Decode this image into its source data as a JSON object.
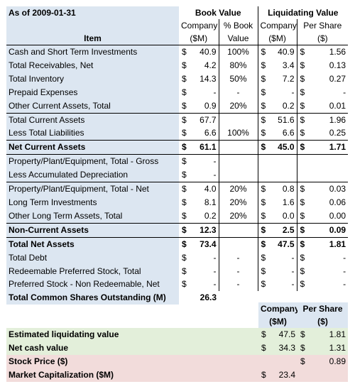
{
  "header": {
    "as_of": "As of 2009-01-31",
    "book_value": "Book Value",
    "liquidating_value": "Liquidating Value",
    "company": "Company",
    "pct_book": "% Book",
    "company2": "Company",
    "per_share": "Per Share",
    "item": "Item",
    "sm": "($M)",
    "value": "Value",
    "sm2": "($M)",
    "dollar": "($)"
  },
  "rows": [
    {
      "label": "Cash and Short Term Investments",
      "bv_cur": "$",
      "bv": "40.9",
      "pct": "100%",
      "lv_cur": "$",
      "lv": "40.9",
      "ps_cur": "$",
      "ps": "1.56"
    },
    {
      "label": "Total Receivables, Net",
      "bv_cur": "$",
      "bv": "4.2",
      "pct": "80%",
      "lv_cur": "$",
      "lv": "3.4",
      "ps_cur": "$",
      "ps": "0.13"
    },
    {
      "label": "Total Inventory",
      "bv_cur": "$",
      "bv": "14.3",
      "pct": "50%",
      "lv_cur": "$",
      "lv": "7.2",
      "ps_cur": "$",
      "ps": "0.27"
    },
    {
      "label": "Prepaid Expenses",
      "bv_cur": "$",
      "bv": "-",
      "pct": "-",
      "lv_cur": "$",
      "lv": "-",
      "ps_cur": "$",
      "ps": "-"
    },
    {
      "label": "Other Current Assets, Total",
      "bv_cur": "$",
      "bv": "0.9",
      "pct": "20%",
      "lv_cur": "$",
      "lv": "0.2",
      "ps_cur": "$",
      "ps": "0.01"
    },
    {
      "label": "Total Current Assets",
      "bv_cur": "$",
      "bv": "67.7",
      "pct": "",
      "lv_cur": "$",
      "lv": "51.6",
      "ps_cur": "$",
      "ps": "1.96"
    },
    {
      "label": "Less Total Liabilities",
      "bv_cur": "$",
      "bv": "6.6",
      "pct": "100%",
      "lv_cur": "$",
      "lv": "6.6",
      "ps_cur": "$",
      "ps": "0.25"
    },
    {
      "label": "Net Current Assets",
      "bv_cur": "$",
      "bv": "61.1",
      "pct": "",
      "lv_cur": "$",
      "lv": "45.0",
      "ps_cur": "$",
      "ps": "1.71"
    },
    {
      "label": "Property/Plant/Equipment, Total - Gross",
      "bv_cur": "$",
      "bv": "-",
      "pct": "",
      "lv_cur": "",
      "lv": "",
      "ps_cur": "",
      "ps": ""
    },
    {
      "label": "Less Accumulated Depreciation",
      "bv_cur": "$",
      "bv": "-",
      "pct": "",
      "lv_cur": "",
      "lv": "",
      "ps_cur": "",
      "ps": ""
    },
    {
      "label": "Property/Plant/Equipment, Total - Net",
      "bv_cur": "$",
      "bv": "4.0",
      "pct": "20%",
      "lv_cur": "$",
      "lv": "0.8",
      "ps_cur": "$",
      "ps": "0.03"
    },
    {
      "label": "Long Term Investments",
      "bv_cur": "$",
      "bv": "8.1",
      "pct": "20%",
      "lv_cur": "$",
      "lv": "1.6",
      "ps_cur": "$",
      "ps": "0.06"
    },
    {
      "label": "Other Long Term Assets, Total",
      "bv_cur": "$",
      "bv": "0.2",
      "pct": "20%",
      "lv_cur": "$",
      "lv": "0.0",
      "ps_cur": "$",
      "ps": "0.00"
    },
    {
      "label": "Non-Current Assets",
      "bv_cur": "$",
      "bv": "12.3",
      "pct": "",
      "lv_cur": "$",
      "lv": "2.5",
      "ps_cur": "$",
      "ps": "0.09"
    },
    {
      "label": "Total Net Assets",
      "bv_cur": "$",
      "bv": "73.4",
      "pct": "",
      "lv_cur": "$",
      "lv": "47.5",
      "ps_cur": "$",
      "ps": "1.81"
    },
    {
      "label": "Total Debt",
      "bv_cur": "$",
      "bv": "-",
      "pct": "-",
      "lv_cur": "$",
      "lv": "-",
      "ps_cur": "$",
      "ps": "-"
    },
    {
      "label": "Redeemable Preferred Stock, Total",
      "bv_cur": "$",
      "bv": "-",
      "pct": "-",
      "lv_cur": "$",
      "lv": "-",
      "ps_cur": "$",
      "ps": "-"
    },
    {
      "label": "Preferred Stock - Non Redeemable, Net",
      "bv_cur": "$",
      "bv": "-",
      "pct": "-",
      "lv_cur": "$",
      "lv": "-",
      "ps_cur": "$",
      "ps": "-"
    },
    {
      "label": "Total Common Shares Outstanding (M)",
      "bv_cur": "",
      "bv": "26.3",
      "pct": "",
      "lv_cur": "",
      "lv": "",
      "ps_cur": "",
      "ps": ""
    }
  ],
  "summary": {
    "company": "Company",
    "per_share": "Per Share",
    "sm": "($M)",
    "dollar": "($)",
    "rows": [
      {
        "label": "Estimated liquidating value",
        "c_cur": "$",
        "c": "47.5",
        "p_cur": "$",
        "p": "1.81"
      },
      {
        "label": "Net cash value",
        "c_cur": "$",
        "c": "34.3",
        "p_cur": "$",
        "p": "1.31"
      },
      {
        "label": "Stock Price ($)",
        "c_cur": "",
        "c": "",
        "p_cur": "$",
        "p": "0.89"
      },
      {
        "label": "Market Capitalization ($M)",
        "c_cur": "$",
        "c": "23.4",
        "p_cur": "",
        "p": ""
      }
    ]
  }
}
